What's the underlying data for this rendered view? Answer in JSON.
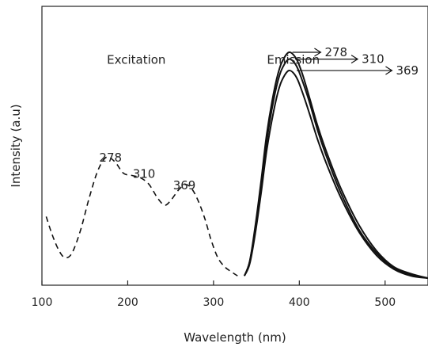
{
  "chart_data": {
    "type": "line",
    "xlabel": "Wavelength (nm)",
    "ylabel": "Intensity (a.u)",
    "xlim": [
      100,
      550
    ],
    "ylim": [
      0,
      1
    ],
    "x_ticks": [
      100,
      200,
      300,
      400,
      500
    ],
    "grid": false,
    "annotations": [
      {
        "text": "Excitation",
        "x": 210,
        "y": 0.95
      },
      {
        "text": "Emission",
        "x": 393,
        "y": 0.95
      },
      {
        "text": "278",
        "x": 180,
        "y": 0.52
      },
      {
        "text": "310",
        "x": 219,
        "y": 0.45
      },
      {
        "text": "369",
        "x": 266,
        "y": 0.4
      }
    ],
    "series": [
      {
        "style": "dashed",
        "x": [
          105,
          112,
          120,
          127,
          135,
          145,
          155,
          165,
          175,
          185,
          195,
          205,
          215,
          225,
          235,
          243,
          250,
          260,
          268,
          275,
          282,
          290,
          297,
          305,
          313,
          320,
          328
        ],
        "y": [
          0.28,
          0.2,
          0.13,
          0.1,
          0.12,
          0.22,
          0.36,
          0.48,
          0.54,
          0.52,
          0.47,
          0.46,
          0.45,
          0.42,
          0.36,
          0.33,
          0.35,
          0.4,
          0.42,
          0.4,
          0.35,
          0.27,
          0.18,
          0.1,
          0.06,
          0.04,
          0.02
        ]
      },
      {
        "style": "solid",
        "label": "278",
        "x": [
          336,
          342,
          348,
          355,
          362,
          370,
          377,
          383,
          388,
          393,
          398,
          404,
          412,
          422,
          435,
          450,
          470,
          490,
          510,
          530,
          550
        ],
        "y": [
          0.02,
          0.08,
          0.22,
          0.42,
          0.64,
          0.82,
          0.93,
          0.98,
          1.0,
          0.99,
          0.96,
          0.9,
          0.8,
          0.67,
          0.53,
          0.39,
          0.24,
          0.13,
          0.06,
          0.03,
          0.01
        ]
      },
      {
        "style": "solid",
        "label": "310",
        "x": [
          336,
          342,
          348,
          355,
          362,
          370,
          377,
          383,
          388,
          393,
          398,
          404,
          412,
          422,
          435,
          450,
          470,
          490,
          510,
          530,
          550
        ],
        "y": [
          0.02,
          0.08,
          0.21,
          0.4,
          0.61,
          0.79,
          0.9,
          0.95,
          0.97,
          0.96,
          0.93,
          0.87,
          0.78,
          0.65,
          0.51,
          0.37,
          0.22,
          0.12,
          0.055,
          0.025,
          0.01
        ]
      },
      {
        "style": "solid",
        "label": "369",
        "x": [
          336,
          342,
          348,
          355,
          362,
          370,
          377,
          383,
          388,
          393,
          398,
          404,
          412,
          422,
          435,
          450,
          470,
          490,
          510,
          530,
          550
        ],
        "y": [
          0.02,
          0.07,
          0.19,
          0.37,
          0.57,
          0.74,
          0.85,
          0.9,
          0.92,
          0.91,
          0.88,
          0.82,
          0.73,
          0.61,
          0.48,
          0.35,
          0.21,
          0.11,
          0.05,
          0.02,
          0.01
        ]
      }
    ],
    "peak_arrows": [
      {
        "label": "278",
        "from_x": 392,
        "to_x": 425,
        "y": 1.0
      },
      {
        "label": "310",
        "from_x": 395,
        "to_x": 468,
        "y": 0.97
      },
      {
        "label": "369",
        "from_x": 397,
        "to_x": 508,
        "y": 0.92
      }
    ]
  }
}
